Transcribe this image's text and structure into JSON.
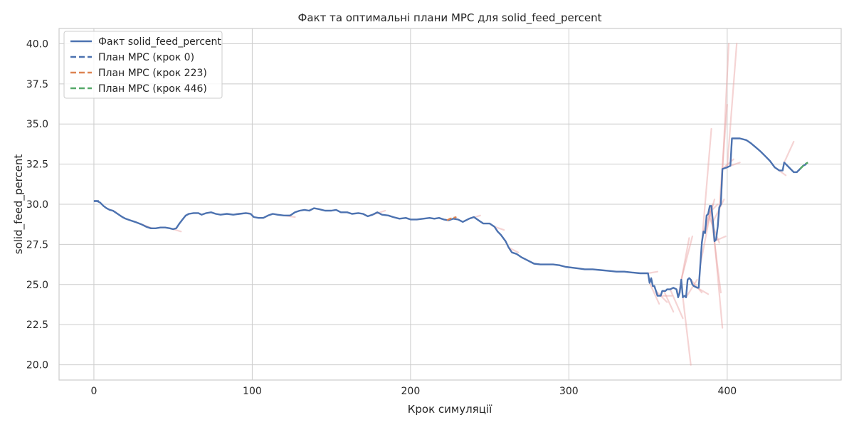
{
  "chart_data": {
    "type": "line",
    "title": "Факт та оптимальні плани MPC для solid_feed_percent",
    "xlabel": "Крок симуляції",
    "ylabel": "solid_feed_percent",
    "xlim": [
      -22,
      472
    ],
    "ylim": [
      19.05,
      40.95
    ],
    "x_ticks": [
      0,
      100,
      200,
      300,
      400
    ],
    "y_ticks": [
      20.0,
      22.5,
      25.0,
      27.5,
      30.0,
      32.5,
      35.0,
      37.5,
      40.0
    ],
    "grid": true,
    "legend_position": "top-left",
    "colors": {
      "fact": "#4c72b0",
      "plan_0": "#4c72b0",
      "plan_223": "#dd8452",
      "plan_446": "#55a868",
      "faint_plans": "#e8a0a0",
      "grid": "#cccccc"
    },
    "legend": [
      "Факт solid_feed_percent",
      "План MPC (крок 0)",
      "План MPC (крок 223)",
      "План MPC (крок 446)"
    ],
    "series": [
      {
        "name": "Факт solid_feed_percent",
        "style": "solid",
        "points": [
          [
            0,
            30.2
          ],
          [
            2,
            30.2
          ],
          [
            4,
            30.1
          ],
          [
            6,
            29.9
          ],
          [
            8,
            29.75
          ],
          [
            10,
            29.65
          ],
          [
            12,
            29.6
          ],
          [
            15,
            29.4
          ],
          [
            18,
            29.2
          ],
          [
            20,
            29.1
          ],
          [
            23,
            29.0
          ],
          [
            26,
            28.9
          ],
          [
            30,
            28.75
          ],
          [
            33,
            28.6
          ],
          [
            36,
            28.5
          ],
          [
            39,
            28.5
          ],
          [
            42,
            28.55
          ],
          [
            45,
            28.55
          ],
          [
            48,
            28.5
          ],
          [
            50,
            28.45
          ],
          [
            52,
            28.5
          ],
          [
            54,
            28.8
          ],
          [
            56,
            29.05
          ],
          [
            58,
            29.3
          ],
          [
            60,
            29.4
          ],
          [
            63,
            29.45
          ],
          [
            66,
            29.45
          ],
          [
            68,
            29.35
          ],
          [
            71,
            29.45
          ],
          [
            74,
            29.5
          ],
          [
            77,
            29.4
          ],
          [
            80,
            29.35
          ],
          [
            84,
            29.4
          ],
          [
            88,
            29.35
          ],
          [
            92,
            29.4
          ],
          [
            96,
            29.45
          ],
          [
            99,
            29.4
          ],
          [
            101,
            29.2
          ],
          [
            104,
            29.15
          ],
          [
            107,
            29.15
          ],
          [
            110,
            29.3
          ],
          [
            113,
            29.4
          ],
          [
            116,
            29.35
          ],
          [
            120,
            29.3
          ],
          [
            124,
            29.3
          ],
          [
            127,
            29.5
          ],
          [
            130,
            29.6
          ],
          [
            133,
            29.65
          ],
          [
            136,
            29.6
          ],
          [
            139,
            29.75
          ],
          [
            142,
            29.7
          ],
          [
            146,
            29.6
          ],
          [
            150,
            29.6
          ],
          [
            153,
            29.65
          ],
          [
            156,
            29.5
          ],
          [
            160,
            29.5
          ],
          [
            163,
            29.4
          ],
          [
            167,
            29.45
          ],
          [
            170,
            29.4
          ],
          [
            173,
            29.25
          ],
          [
            176,
            29.35
          ],
          [
            179,
            29.5
          ],
          [
            182,
            29.35
          ],
          [
            186,
            29.3
          ],
          [
            189,
            29.2
          ],
          [
            193,
            29.1
          ],
          [
            197,
            29.15
          ],
          [
            200,
            29.05
          ],
          [
            204,
            29.05
          ],
          [
            208,
            29.1
          ],
          [
            212,
            29.15
          ],
          [
            215,
            29.1
          ],
          [
            218,
            29.15
          ],
          [
            221,
            29.05
          ],
          [
            224,
            29.0
          ],
          [
            227,
            29.1
          ],
          [
            230,
            29.05
          ],
          [
            233,
            28.9
          ],
          [
            237,
            29.1
          ],
          [
            240,
            29.2
          ],
          [
            243,
            29.0
          ],
          [
            246,
            28.8
          ],
          [
            250,
            28.8
          ],
          [
            253,
            28.6
          ],
          [
            255,
            28.3
          ],
          [
            257,
            28.1
          ],
          [
            260,
            27.7
          ],
          [
            262,
            27.3
          ],
          [
            264,
            27.0
          ],
          [
            267,
            26.9
          ],
          [
            270,
            26.7
          ],
          [
            274,
            26.5
          ],
          [
            278,
            26.3
          ],
          [
            282,
            26.25
          ],
          [
            286,
            26.25
          ],
          [
            290,
            26.25
          ],
          [
            294,
            26.2
          ],
          [
            298,
            26.1
          ],
          [
            302,
            26.05
          ],
          [
            306,
            26.0
          ],
          [
            310,
            25.95
          ],
          [
            315,
            25.95
          ],
          [
            320,
            25.9
          ],
          [
            325,
            25.85
          ],
          [
            330,
            25.8
          ],
          [
            335,
            25.8
          ],
          [
            340,
            25.75
          ],
          [
            345,
            25.7
          ],
          [
            350,
            25.7
          ],
          [
            351,
            25.1
          ],
          [
            352,
            25.4
          ],
          [
            353,
            24.9
          ],
          [
            354,
            24.9
          ],
          [
            355,
            24.6
          ],
          [
            356,
            24.3
          ],
          [
            358,
            24.3
          ],
          [
            359,
            24.6
          ],
          [
            361,
            24.6
          ],
          [
            362,
            24.7
          ],
          [
            364,
            24.7
          ],
          [
            366,
            24.8
          ],
          [
            368,
            24.7
          ],
          [
            369,
            24.2
          ],
          [
            370,
            24.5
          ],
          [
            371,
            25.3
          ],
          [
            372,
            24.2
          ],
          [
            373,
            24.3
          ],
          [
            374,
            24.2
          ],
          [
            375,
            25.3
          ],
          [
            376,
            25.4
          ],
          [
            377,
            25.3
          ],
          [
            378,
            25.0
          ],
          [
            379,
            24.9
          ],
          [
            381,
            24.8
          ],
          [
            382,
            24.8
          ],
          [
            383,
            26.2
          ],
          [
            384,
            27.6
          ],
          [
            385,
            28.3
          ],
          [
            386,
            28.2
          ],
          [
            387,
            29.3
          ],
          [
            388,
            29.4
          ],
          [
            389,
            29.9
          ],
          [
            390,
            29.9
          ],
          [
            391,
            28.9
          ],
          [
            392,
            27.7
          ],
          [
            393,
            27.8
          ],
          [
            394,
            28.6
          ],
          [
            395,
            29.8
          ],
          [
            396,
            30.0
          ],
          [
            397,
            32.2
          ],
          [
            400,
            32.3
          ],
          [
            402,
            32.4
          ],
          [
            403,
            34.1
          ],
          [
            408,
            34.1
          ],
          [
            412,
            34.0
          ],
          [
            415,
            33.8
          ],
          [
            418,
            33.55
          ],
          [
            421,
            33.3
          ],
          [
            424,
            33.0
          ],
          [
            427,
            32.7
          ],
          [
            430,
            32.3
          ],
          [
            433,
            32.1
          ],
          [
            435,
            32.1
          ],
          [
            436,
            32.6
          ],
          [
            438,
            32.4
          ],
          [
            440,
            32.2
          ],
          [
            442,
            32.0
          ],
          [
            444,
            32.0
          ],
          [
            446,
            32.2
          ],
          [
            448,
            32.4
          ],
          [
            450,
            32.5
          ]
        ]
      },
      {
        "name": "План MPC (крок 0)",
        "style": "dashed",
        "points": [
          [
            0,
            30.2
          ],
          [
            1,
            30.2
          ],
          [
            2,
            30.2
          ],
          [
            3,
            30.2
          ],
          [
            4,
            30.2
          ]
        ]
      },
      {
        "name": "План MPC (крок 223)",
        "style": "dashed",
        "points": [
          [
            223,
            29.0
          ],
          [
            225,
            29.1
          ],
          [
            227,
            29.15
          ],
          [
            229,
            29.2
          ]
        ]
      },
      {
        "name": "План MPC (крок 446)",
        "style": "dashed",
        "points": [
          [
            446,
            32.2
          ],
          [
            448,
            32.4
          ],
          [
            450,
            32.55
          ],
          [
            451,
            32.6
          ]
        ]
      }
    ],
    "faint_plans": [
      [
        [
          8,
          29.75
        ],
        [
          14,
          29.5
        ]
      ],
      [
        [
          30,
          28.75
        ],
        [
          37,
          28.5
        ]
      ],
      [
        [
          48,
          28.5
        ],
        [
          55,
          28.3
        ]
      ],
      [
        [
          90,
          29.4
        ],
        [
          98,
          29.45
        ]
      ],
      [
        [
          120,
          29.3
        ],
        [
          127,
          29.2
        ]
      ],
      [
        [
          176,
          29.35
        ],
        [
          184,
          29.6
        ]
      ],
      [
        [
          237,
          29.1
        ],
        [
          244,
          29.3
        ]
      ],
      [
        [
          253,
          28.6
        ],
        [
          259,
          28.4
        ]
      ],
      [
        [
          262,
          27.3
        ],
        [
          268,
          27.0
        ]
      ],
      [
        [
          350,
          25.7
        ],
        [
          356,
          25.8
        ]
      ],
      [
        [
          351,
          25.1
        ],
        [
          357,
          23.8
        ]
      ],
      [
        [
          355,
          24.6
        ],
        [
          362,
          23.9
        ]
      ],
      [
        [
          358,
          24.3
        ],
        [
          365,
          24.3
        ]
      ],
      [
        [
          360,
          24.6
        ],
        [
          366,
          23.3
        ]
      ],
      [
        [
          364,
          24.7
        ],
        [
          372,
          22.9
        ]
      ],
      [
        [
          369,
          24.2
        ],
        [
          376,
          27.9
        ]
      ],
      [
        [
          371,
          25.3
        ],
        [
          378,
          28.0
        ]
      ],
      [
        [
          372,
          24.2
        ],
        [
          377,
          20.0
        ]
      ],
      [
        [
          374,
          24.2
        ],
        [
          381,
          25.3
        ]
      ],
      [
        [
          377,
          25.3
        ],
        [
          384,
          24.5
        ]
      ],
      [
        [
          381,
          24.8
        ],
        [
          388,
          24.4
        ]
      ],
      [
        [
          383,
          26.2
        ],
        [
          389,
          29.3
        ]
      ],
      [
        [
          384,
          27.6
        ],
        [
          390,
          34.7
        ]
      ],
      [
        [
          385,
          28.3
        ],
        [
          391,
          30.0
        ]
      ],
      [
        [
          386,
          28.2
        ],
        [
          392,
          30.3
        ]
      ],
      [
        [
          387,
          29.3
        ],
        [
          394,
          30.0
        ]
      ],
      [
        [
          388,
          29.4
        ],
        [
          395,
          27.6
        ]
      ],
      [
        [
          389,
          29.9
        ],
        [
          396,
          24.5
        ]
      ],
      [
        [
          390,
          29.9
        ],
        [
          397,
          22.3
        ]
      ],
      [
        [
          391,
          28.9
        ],
        [
          398,
          30.3
        ]
      ],
      [
        [
          392,
          27.7
        ],
        [
          399,
          28.0
        ]
      ],
      [
        [
          394,
          28.6
        ],
        [
          400,
          36.2
        ]
      ],
      [
        [
          396,
          30.0
        ],
        [
          401,
          40.0
        ]
      ],
      [
        [
          397,
          32.2
        ],
        [
          404,
          32.8
        ]
      ],
      [
        [
          400,
          32.3
        ],
        [
          406,
          40.0
        ]
      ],
      [
        [
          402,
          32.4
        ],
        [
          408,
          32.6
        ]
      ],
      [
        [
          430,
          32.3
        ],
        [
          437,
          31.8
        ]
      ],
      [
        [
          436,
          32.6
        ],
        [
          442,
          33.9
        ]
      ]
    ]
  }
}
